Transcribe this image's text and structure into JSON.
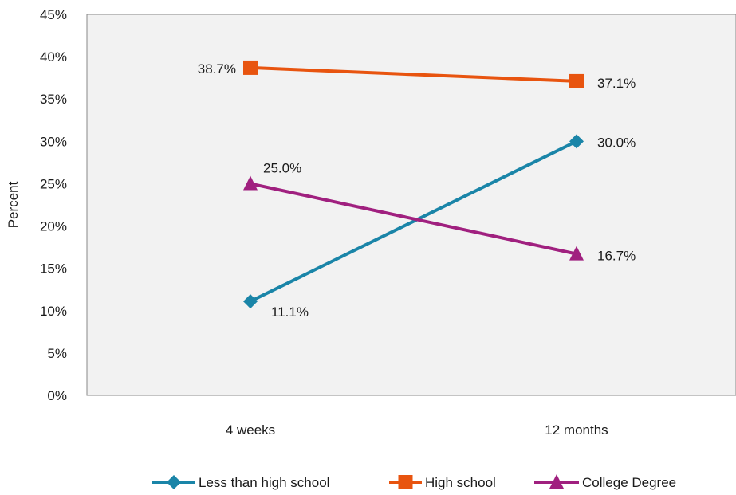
{
  "chart_data": {
    "type": "line",
    "categories": [
      "4 weeks",
      "12 months"
    ],
    "ylabel": "Percent",
    "ylim": [
      0,
      45
    ],
    "yticks": [
      0,
      5,
      10,
      15,
      20,
      25,
      30,
      35,
      40,
      45
    ],
    "ytick_labels": [
      "0%",
      "5%",
      "10%",
      "15%",
      "20%",
      "25%",
      "30%",
      "35%",
      "40%",
      "45%"
    ],
    "grid": false,
    "legend_position": "bottom",
    "series": [
      {
        "name": "Less than high school",
        "values": [
          11.1,
          30.0
        ],
        "labels": [
          "11.1%",
          "30.0%"
        ],
        "color": "#1a85a8",
        "marker": "diamond"
      },
      {
        "name": "High school",
        "values": [
          38.7,
          37.1
        ],
        "labels": [
          "38.7%",
          "37.1%"
        ],
        "color": "#e8540f",
        "marker": "square"
      },
      {
        "name": "College Degree",
        "values": [
          25.0,
          16.7
        ],
        "labels": [
          "25.0%",
          "16.7%"
        ],
        "color": "#a0207f",
        "marker": "triangle"
      }
    ]
  }
}
